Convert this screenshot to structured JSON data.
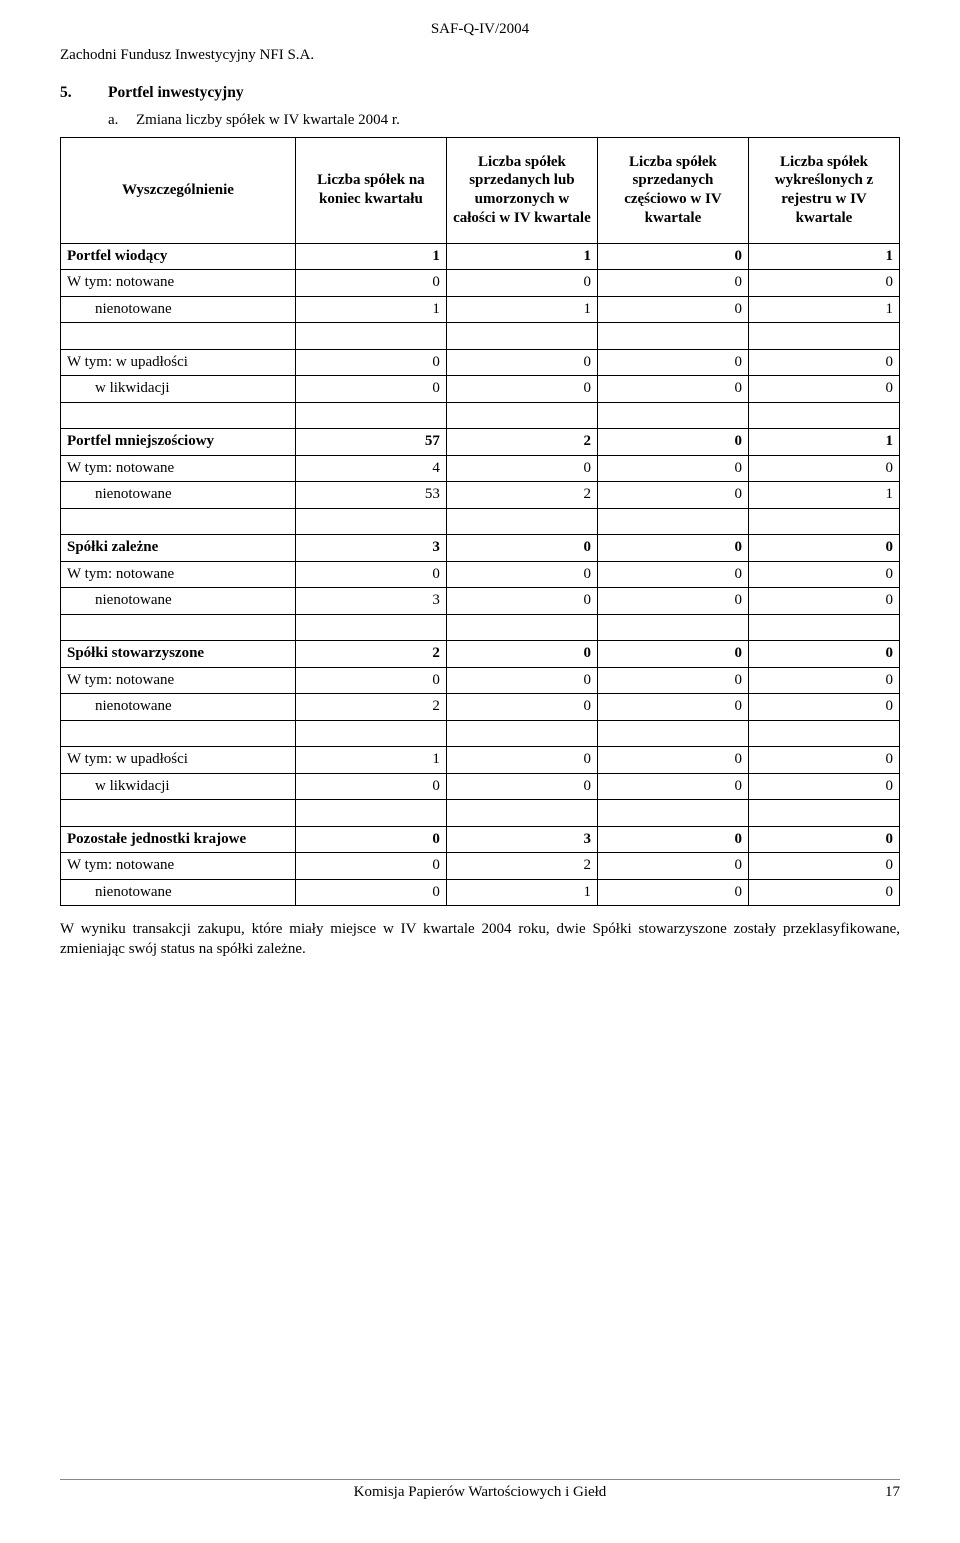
{
  "header": {
    "code": "SAF-Q-IV/2004",
    "company": "Zachodni Fundusz Inwestycyjny NFI S.A."
  },
  "section": {
    "number": "5.",
    "title": "Portfel inwestycyjny",
    "sub_letter": "a.",
    "sub_title": "Zmiana liczby spółek w IV kwartale 2004 r."
  },
  "table": {
    "columns": [
      "Wyszczególnienie",
      "Liczba spółek na koniec kwartału",
      "Liczba spółek sprzedanych lub umorzonych w całości w IV kwartale",
      "Liczba spółek sprzedanych częściowo w IV kwartale",
      "Liczba spółek wykreślonych z rejestru w IV kwartale"
    ],
    "groups": [
      {
        "rows": [
          {
            "label": "Portfel wiodący",
            "bold": true,
            "indent": 0,
            "v": [
              "1",
              "1",
              "0",
              "1"
            ]
          },
          {
            "label": "W tym: notowane",
            "bold": false,
            "indent": 0,
            "v": [
              "0",
              "0",
              "0",
              "0"
            ]
          },
          {
            "label": "nienotowane",
            "bold": false,
            "indent": 1,
            "v": [
              "1",
              "1",
              "0",
              "1"
            ]
          }
        ]
      },
      {
        "rows": [
          {
            "label": "W tym: w upadłości",
            "bold": false,
            "indent": 0,
            "v": [
              "0",
              "0",
              "0",
              "0"
            ]
          },
          {
            "label": "w likwidacji",
            "bold": false,
            "indent": 1,
            "v": [
              "0",
              "0",
              "0",
              "0"
            ]
          }
        ]
      },
      {
        "rows": [
          {
            "label": "Portfel mniejszościowy",
            "bold": true,
            "indent": 0,
            "v": [
              "57",
              "2",
              "0",
              "1"
            ]
          },
          {
            "label": "W tym: notowane",
            "bold": false,
            "indent": 0,
            "v": [
              "4",
              "0",
              "0",
              "0"
            ]
          },
          {
            "label": "nienotowane",
            "bold": false,
            "indent": 1,
            "v": [
              "53",
              "2",
              "0",
              "1"
            ]
          }
        ]
      },
      {
        "rows": [
          {
            "label": "Spółki zależne",
            "bold": true,
            "indent": 0,
            "v": [
              "3",
              "0",
              "0",
              "0"
            ]
          },
          {
            "label": "W tym: notowane",
            "bold": false,
            "indent": 0,
            "v": [
              "0",
              "0",
              "0",
              "0"
            ]
          },
          {
            "label": "nienotowane",
            "bold": false,
            "indent": 1,
            "v": [
              "3",
              "0",
              "0",
              "0"
            ]
          }
        ]
      },
      {
        "rows": [
          {
            "label": "Spółki stowarzyszone",
            "bold": true,
            "indent": 0,
            "v": [
              "2",
              "0",
              "0",
              "0"
            ]
          },
          {
            "label": "W tym: notowane",
            "bold": false,
            "indent": 0,
            "v": [
              "0",
              "0",
              "0",
              "0"
            ]
          },
          {
            "label": "nienotowane",
            "bold": false,
            "indent": 1,
            "v": [
              "2",
              "0",
              "0",
              "0"
            ]
          }
        ]
      },
      {
        "rows": [
          {
            "label": "W tym: w upadłości",
            "bold": false,
            "indent": 0,
            "v": [
              "1",
              "0",
              "0",
              "0"
            ]
          },
          {
            "label": "w likwidacji",
            "bold": false,
            "indent": 1,
            "v": [
              "0",
              "0",
              "0",
              "0"
            ]
          }
        ]
      },
      {
        "rows": [
          {
            "label": "Pozostałe jednostki krajowe",
            "bold": true,
            "indent": 0,
            "v": [
              "0",
              "3",
              "0",
              "0"
            ]
          },
          {
            "label": "W tym: notowane",
            "bold": false,
            "indent": 0,
            "v": [
              "0",
              "2",
              "0",
              "0"
            ]
          },
          {
            "label": "nienotowane",
            "bold": false,
            "indent": 1,
            "v": [
              "0",
              "1",
              "0",
              "0"
            ]
          }
        ]
      }
    ]
  },
  "paragraph": "W wyniku transakcji zakupu, które miały miejsce w IV kwartale 2004 roku, dwie Spółki stowarzyszone zostały przeklasyfikowane, zmieniając swój status na spółki zależne.",
  "footer": {
    "text": "Komisja Papierów Wartościowych i Giełd",
    "page": "17"
  }
}
